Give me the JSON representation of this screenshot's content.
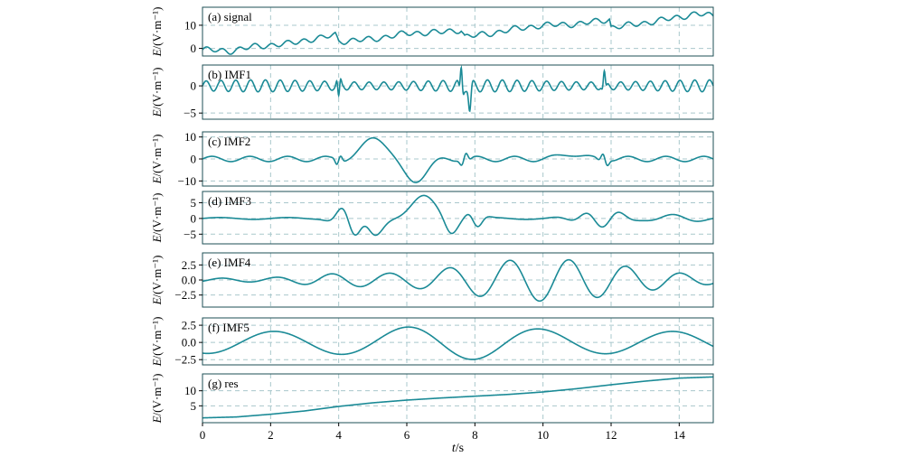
{
  "chart_data": {
    "type": "line",
    "layout": "stacked-subplots",
    "xlabel": "t/s",
    "xlabel_var": "t",
    "xlabel_unit": "/s",
    "xlim": [
      0,
      15
    ],
    "xticks": [
      0,
      2,
      4,
      6,
      8,
      10,
      12,
      14
    ],
    "ylabel": "E/(V·m⁻¹)",
    "ylabel_var": "E",
    "ylabel_unit": "/(V·m⁻¹)",
    "grid": "dashed",
    "colors": {
      "line": "#1a8a96",
      "spike": "#0b5fa8",
      "grid": "#a9c8cc",
      "frame": "#1d4f55"
    },
    "panels": [
      {
        "label": "(a) signal",
        "ylim": [
          -2.5,
          17
        ],
        "yticks": [
          0,
          10
        ],
        "ytick_labels": [
          "0",
          "10"
        ],
        "series": {
          "kind": "signal",
          "points": [
            [
              0,
              -0.5
            ],
            [
              0.8,
              -1.2
            ],
            [
              1.5,
              0.8
            ],
            [
              2.5,
              2
            ],
            [
              3,
              3.5
            ],
            [
              3.5,
              4.5
            ],
            [
              3.9,
              6
            ],
            [
              4,
              3
            ],
            [
              5,
              4
            ],
            [
              6,
              6.5
            ],
            [
              7,
              7
            ],
            [
              7.6,
              8
            ],
            [
              7.7,
              5
            ],
            [
              8.5,
              6.5
            ],
            [
              9,
              8
            ],
            [
              10,
              10
            ],
            [
              11,
              10.5
            ],
            [
              11.95,
              12.5
            ],
            [
              12,
              9
            ],
            [
              13,
              11
            ],
            [
              14,
              13.5
            ],
            [
              14.5,
              15
            ],
            [
              15,
              14
            ]
          ],
          "osc_amp": 1.0,
          "osc_freq": 2.1
        }
      },
      {
        "label": "(b) IMF1",
        "ylim": [
          -5.8,
          3.5
        ],
        "yticks": [
          0,
          -5
        ],
        "ytick_labels": [
          "0",
          "−5"
        ],
        "series": {
          "kind": "imf1",
          "amp": 1.0,
          "freq": 2.3,
          "bursts": [
            {
              "t": 4.0,
              "amp": -2.5
            },
            {
              "t": 7.6,
              "amp": 3.2
            },
            {
              "t": 11.8,
              "amp": 2.2
            }
          ]
        }
      },
      {
        "label": "(c) IMF2",
        "ylim": [
          -11.5,
          11.5
        ],
        "yticks": [
          10,
          0,
          -10
        ],
        "ytick_labels": [
          "10",
          "0",
          "−10"
        ],
        "series": {
          "kind": "imf2"
        }
      },
      {
        "label": "(d) IMF3",
        "ylim": [
          -7.5,
          8
        ],
        "yticks": [
          5,
          0,
          -5
        ],
        "ytick_labels": [
          "5",
          "0",
          "−5"
        ],
        "series": {
          "kind": "imf3"
        }
      },
      {
        "label": "(e) IMF4",
        "ylim": [
          -4.2,
          4.2
        ],
        "yticks": [
          2.5,
          0.0,
          -2.5
        ],
        "ytick_labels": [
          "2.5",
          "0.0",
          "−2.5"
        ],
        "series": {
          "kind": "imf4"
        }
      },
      {
        "label": "(f) IMF5",
        "ylim": [
          -3,
          3.3
        ],
        "yticks": [
          2.5,
          0.0,
          -2.5
        ],
        "ytick_labels": [
          "2.5",
          "0.0",
          "−2.5"
        ],
        "series": {
          "kind": "imf5"
        }
      },
      {
        "label": "(g) res",
        "ylim": [
          0,
          15
        ],
        "yticks": [
          10,
          5
        ],
        "ytick_labels": [
          "10",
          "5"
        ],
        "series": {
          "kind": "res",
          "points": [
            [
              0,
              1
            ],
            [
              1,
              1.3
            ],
            [
              2,
              2.2
            ],
            [
              3,
              3.3
            ],
            [
              4,
              4.8
            ],
            [
              5,
              6
            ],
            [
              6,
              6.9
            ],
            [
              7,
              7.6
            ],
            [
              8,
              8.2
            ],
            [
              9,
              8.8
            ],
            [
              10,
              9.6
            ],
            [
              11,
              10.7
            ],
            [
              12,
              12
            ],
            [
              13,
              13.2
            ],
            [
              14,
              14.2
            ],
            [
              15,
              14.6
            ]
          ]
        }
      }
    ]
  }
}
